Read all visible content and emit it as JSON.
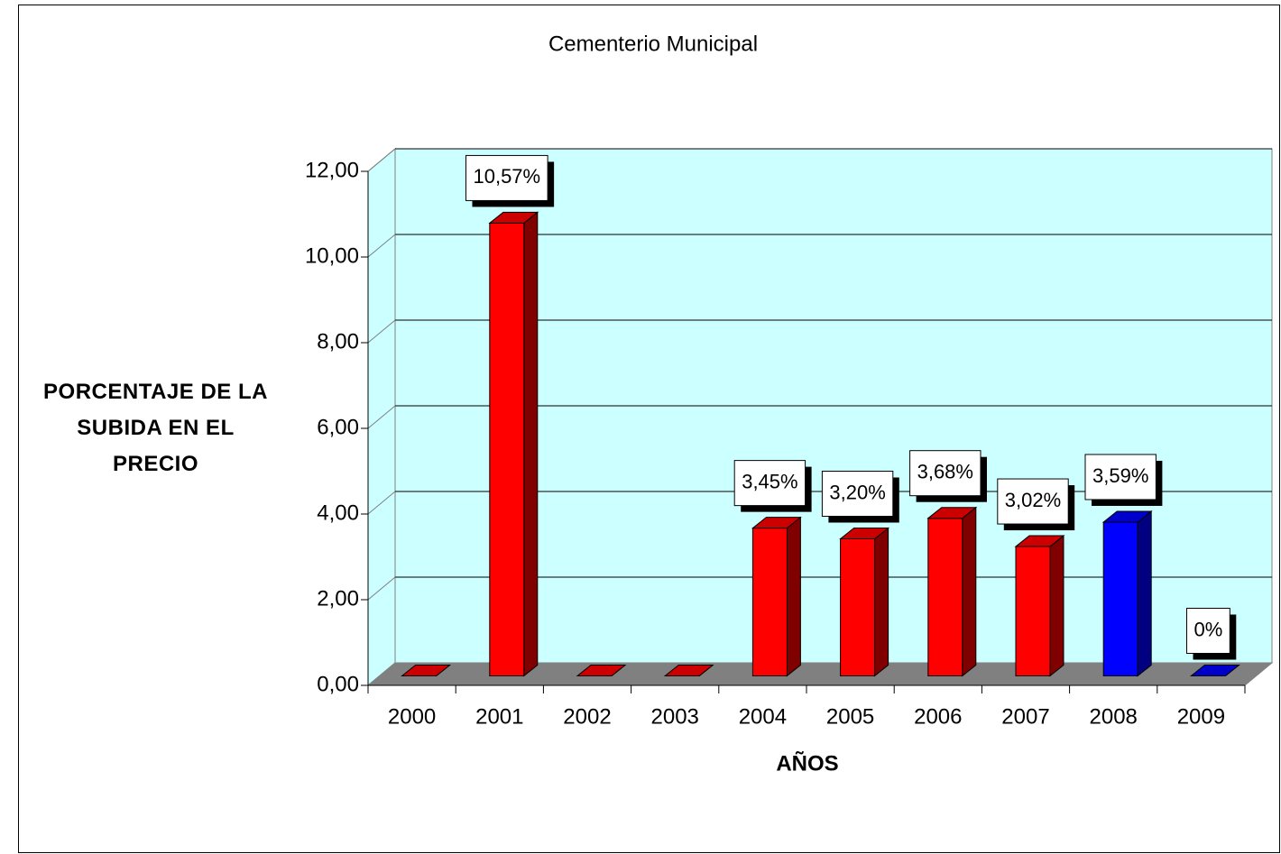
{
  "chart_data": {
    "type": "bar3d",
    "title": "Cementerio Municipal",
    "y_label": "PORCENTAJE DE LA SUBIDA EN EL PRECIO",
    "x_label": "AÑOS",
    "categories": [
      "2000",
      "2001",
      "2002",
      "2003",
      "2004",
      "2005",
      "2006",
      "2007",
      "2008",
      "2009"
    ],
    "values": [
      0,
      10.57,
      0,
      0,
      3.45,
      3.2,
      3.68,
      3.02,
      3.59,
      0
    ],
    "value_labels": [
      null,
      "10,57%",
      null,
      null,
      "3,45%",
      "3,20%",
      "3,68%",
      "3,02%",
      "3,59%",
      "0%"
    ],
    "colors": [
      "#ff0000",
      "#ff0000",
      "#ff0000",
      "#ff0000",
      "#ff0000",
      "#ff0000",
      "#ff0000",
      "#ff0000",
      "#0000ff",
      "#0000ff"
    ],
    "ylim": [
      0,
      12
    ],
    "yticks": [
      {
        "value": 0,
        "label": "0,00"
      },
      {
        "value": 2,
        "label": "2,00"
      },
      {
        "value": 4,
        "label": "4,00"
      },
      {
        "value": 6,
        "label": "6,00"
      },
      {
        "value": 8,
        "label": "8,00"
      },
      {
        "value": 10,
        "label": "10,00"
      },
      {
        "value": 12,
        "label": "12,00"
      }
    ],
    "grid": true
  }
}
